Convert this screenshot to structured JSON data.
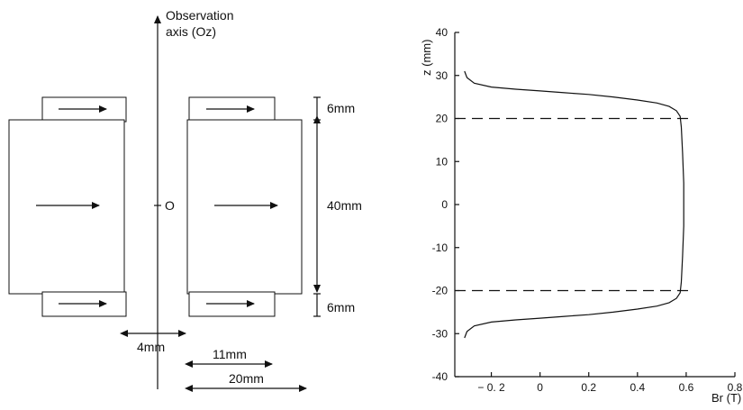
{
  "diagram": {
    "axis_label_line1": "Observation",
    "axis_label_line2": "axis (Oz)",
    "origin_label": "O",
    "dim_top": "6mm",
    "dim_middle": "40mm",
    "dim_bottom": "6mm",
    "dim_gap": "4mm",
    "dim_radial_short": "11mm",
    "dim_radial_long": "20mm"
  },
  "chart_data": {
    "type": "line",
    "title": "",
    "xlabel": "Br (T)",
    "ylabel": "z (mm)",
    "xlim": [
      -0.35,
      0.8
    ],
    "ylim": [
      -40,
      40
    ],
    "x_ticks": [
      -0.2,
      0,
      0.2,
      0.4,
      0.6,
      0.8
    ],
    "x_tick_labels": [
      "− 0. 2",
      "0",
      "0.2",
      "0.4",
      "0.6",
      "0.8"
    ],
    "y_ticks": [
      -40,
      -30,
      -20,
      -10,
      0,
      10,
      20,
      30,
      40
    ],
    "y_tick_labels": [
      "-40",
      "-30",
      "-20",
      "-10",
      "0",
      "10",
      "20",
      "30",
      "40"
    ],
    "grid": false,
    "reference_lines_z": [
      20,
      -20
    ],
    "series": [
      {
        "x": [
          -0.31,
          -0.3,
          -0.27,
          -0.2,
          -0.1,
          0.0,
          0.1,
          0.2,
          0.3,
          0.4,
          0.48,
          0.53,
          0.56,
          0.575,
          0.58,
          0.585,
          0.59,
          0.59,
          0.585,
          0.58,
          0.575,
          0.56,
          0.53,
          0.48,
          0.4,
          0.3,
          0.2,
          0.1,
          0.0,
          -0.1,
          -0.2,
          -0.27,
          -0.3,
          -0.31
        ],
        "y": [
          31,
          29.5,
          28.2,
          27.3,
          26.8,
          26.4,
          26.0,
          25.6,
          25.0,
          24.3,
          23.6,
          22.8,
          21.8,
          20.5,
          18,
          12,
          5,
          -5,
          -12,
          -18,
          -20.5,
          -21.8,
          -22.8,
          -23.6,
          -24.3,
          -25.0,
          -25.6,
          -26.0,
          -26.4,
          -26.8,
          -27.3,
          -28.2,
          -29.5,
          -31
        ]
      }
    ]
  }
}
